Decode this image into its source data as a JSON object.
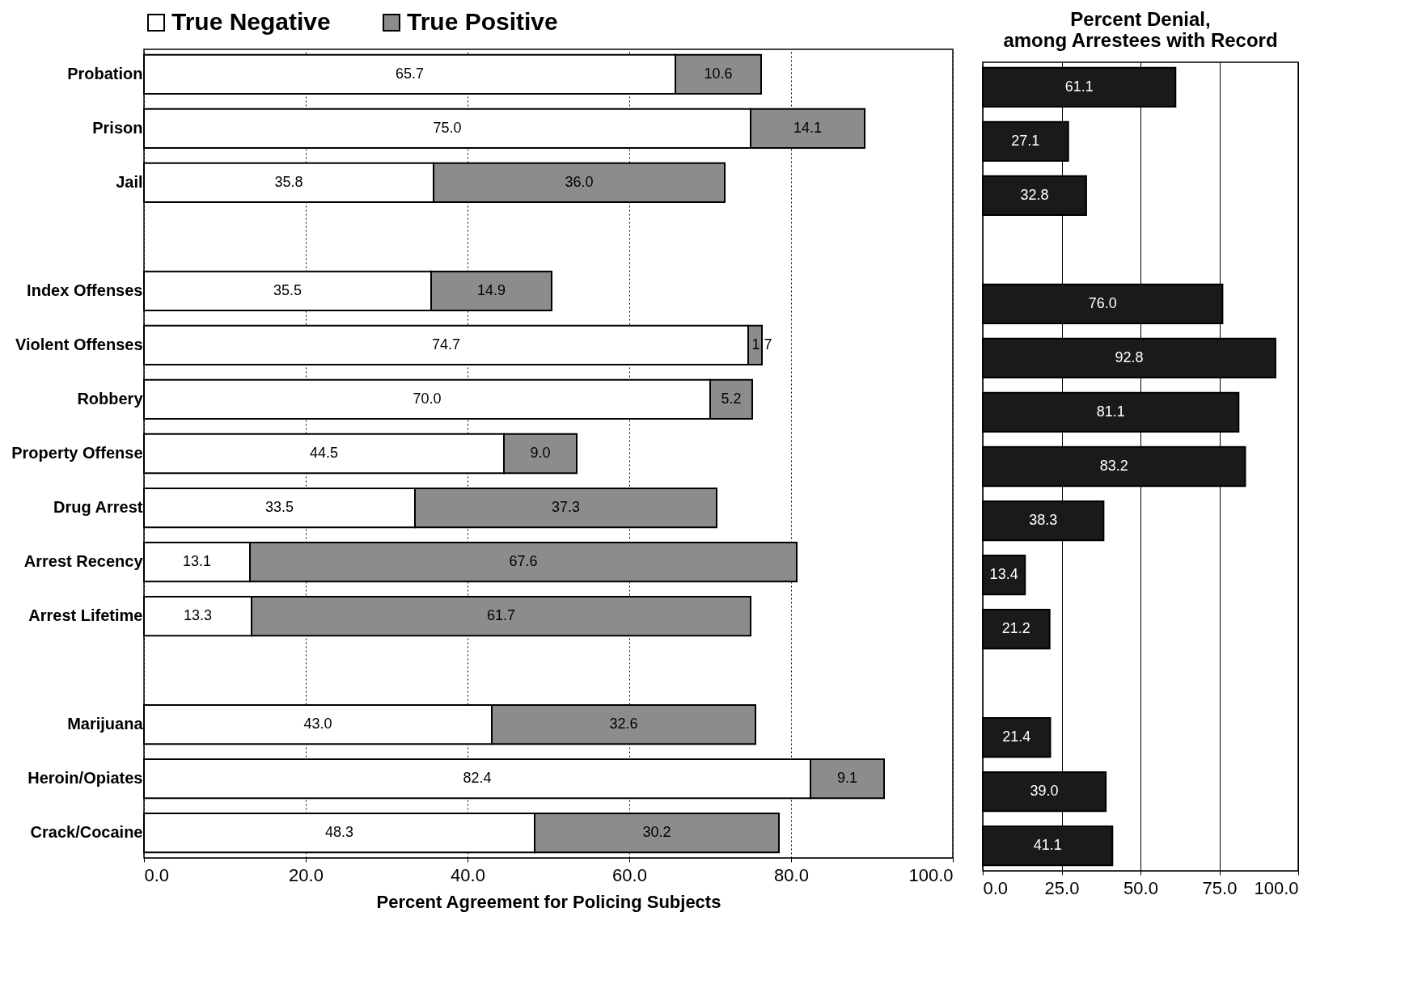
{
  "chart_data": [
    {
      "type": "bar",
      "orientation": "horizontal",
      "stacked": true,
      "xlabel": "Percent Agreement for Policing Subjects",
      "legend": "top",
      "grid": "x",
      "categories": [
        "Probation",
        "Prison",
        "Jail",
        null,
        "Index Offenses",
        "Violent Offenses",
        "Robbery",
        "Property Offense",
        "Drug Arrest",
        "Arrest Recency",
        "Arrest Lifetime",
        null,
        "Marijuana",
        "Heroin/Opiates",
        "Crack/Cocaine"
      ],
      "series": [
        {
          "name": "True Negative",
          "color": "#ffffff",
          "values": [
            65.7,
            75.0,
            35.8,
            null,
            35.5,
            74.7,
            70.0,
            44.5,
            33.5,
            13.1,
            13.3,
            null,
            43.0,
            82.4,
            48.3
          ],
          "value_labels": [
            "65.7",
            "75.0",
            "35.8",
            null,
            "35.5",
            "74.7",
            "70.0",
            "44.5",
            "33.5",
            "13.1",
            "13.3",
            null,
            "43.0",
            "82.4",
            "48.3"
          ]
        },
        {
          "name": "True Positive",
          "color": "#8c8c8c",
          "values": [
            10.6,
            14.1,
            36.0,
            null,
            14.9,
            1.7,
            5.2,
            9.0,
            37.3,
            67.6,
            61.7,
            null,
            32.6,
            9.1,
            30.2
          ],
          "value_labels": [
            "10.6",
            "14.1",
            "36.0",
            null,
            "14.9",
            "1.7",
            "5.2",
            "9.0",
            "37.3",
            "67.6",
            "61.7",
            null,
            "32.6",
            "9.1",
            "30.2"
          ]
        }
      ],
      "xlim": [
        0,
        100
      ],
      "xticks": [
        {
          "value": 0,
          "label": "0.0"
        },
        {
          "value": 20,
          "label": "20.0"
        },
        {
          "value": 40,
          "label": "40.0"
        },
        {
          "value": 60,
          "label": "60.0"
        },
        {
          "value": 80,
          "label": "80.0"
        },
        {
          "value": 100,
          "label": "100.0"
        }
      ]
    },
    {
      "type": "bar",
      "orientation": "horizontal",
      "title": "Percent Denial, among Arrestees with Record",
      "grid": "x",
      "tick_labels": "x",
      "categories": [
        null,
        null,
        null,
        null,
        null,
        null,
        null,
        null,
        null,
        null,
        null,
        null,
        null,
        null,
        null
      ],
      "series": [
        {
          "color": "#1a1a1a",
          "values": [
            61.1,
            27.1,
            32.8,
            null,
            76.0,
            92.8,
            81.1,
            83.2,
            38.3,
            13.4,
            21.2,
            null,
            21.4,
            39.0,
            41.1
          ],
          "value_labels": [
            "61.1",
            "27.1",
            "32.8",
            null,
            "76.0",
            "92.8",
            "81.1",
            "83.2",
            "38.3",
            "13.4",
            "21.2",
            null,
            "21.4",
            "39.0",
            "41.1"
          ]
        }
      ],
      "xlim": [
        0,
        100
      ],
      "xticks": [
        {
          "value": 0,
          "label": "0.0"
        },
        {
          "value": 25,
          "label": "25.0"
        },
        {
          "value": 50,
          "label": "50.0"
        },
        {
          "value": 75,
          "label": "75.0"
        },
        {
          "value": 100,
          "label": "100.0"
        }
      ]
    }
  ]
}
